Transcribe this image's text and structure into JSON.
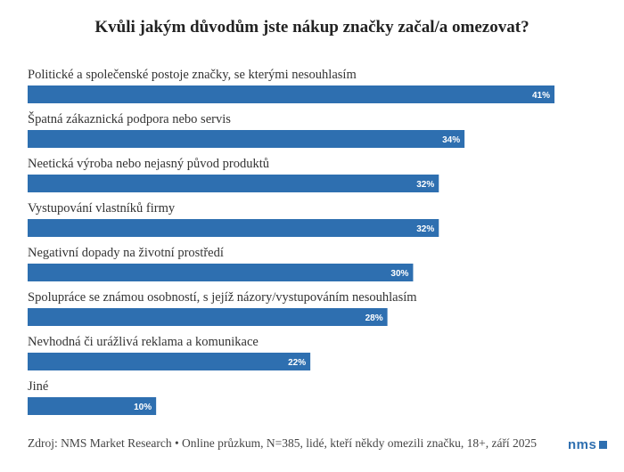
{
  "chart_data": {
    "type": "bar",
    "orientation": "horizontal",
    "title": "Kvůli jakým důvodům jste nákup značky začal/a omezovat?",
    "categories": [
      "Politické a společenské postoje značky, se kterými nesouhlasím",
      "Špatná zákaznická podpora nebo servis",
      "Neetická výroba nebo nejasný původ produktů",
      "Vystupování vlastníků firmy",
      "Negativní dopady na životní prostředí",
      "Spolupráce se známou osobností, s jejíž názory/vystupováním nesouhlasím",
      "Nevhodná či urážlivá reklama a komunikace",
      "Jiné"
    ],
    "values": [
      41,
      34,
      32,
      32,
      30,
      28,
      22,
      10
    ],
    "value_labels": [
      "41%",
      "34%",
      "32%",
      "32%",
      "30%",
      "28%",
      "22%",
      "10%"
    ],
    "xlim": [
      0,
      41
    ],
    "grid": false,
    "bar_color": "#2e6fb0"
  },
  "footer": {
    "source": "Zdroj: NMS Market Research • Online průzkum, N=385, lidé, kteří někdy omezili značku, 18+, září 2025",
    "logo": "nms"
  }
}
